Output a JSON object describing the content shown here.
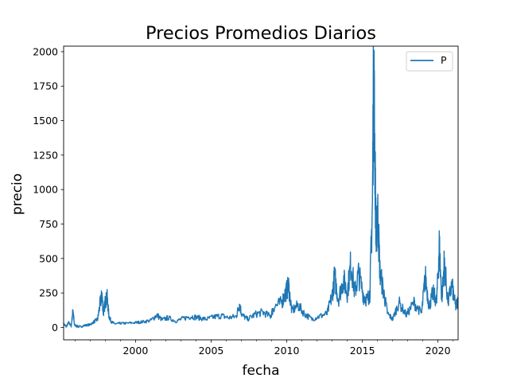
{
  "chart_data": {
    "type": "line",
    "title": "Precios Promedios Diarios",
    "xlabel": "fecha",
    "ylabel": "precio",
    "xlim": [
      "1995-04-01",
      "2021-05-01"
    ],
    "ylim": [
      -90,
      2040
    ],
    "x_ticks": [
      "2000",
      "2005",
      "2010",
      "2015",
      "2020"
    ],
    "y_ticks": [
      "0",
      "250",
      "500",
      "750",
      "1000",
      "1250",
      "1500",
      "1750",
      "2000"
    ],
    "grid": false,
    "legend": {
      "placement": "top-right",
      "entries": [
        "P"
      ]
    },
    "series": [
      {
        "name": "P",
        "color": "#1f77b4",
        "points": [
          [
            "1995-04-01",
            25
          ],
          [
            "1995-06-01",
            5
          ],
          [
            "1995-08-01",
            35
          ],
          [
            "1995-10-01",
            10
          ],
          [
            "1995-11-15",
            130
          ],
          [
            "1995-12-15",
            20
          ],
          [
            "1996-02-01",
            10
          ],
          [
            "1996-05-01",
            5
          ],
          [
            "1996-09-01",
            15
          ],
          [
            "1997-01-01",
            20
          ],
          [
            "1997-04-01",
            40
          ],
          [
            "1997-07-01",
            60
          ],
          [
            "1997-09-01",
            180
          ],
          [
            "1997-10-15",
            230
          ],
          [
            "1997-11-15",
            100
          ],
          [
            "1998-01-01",
            190
          ],
          [
            "1998-02-15",
            215
          ],
          [
            "1998-04-01",
            80
          ],
          [
            "1998-06-01",
            40
          ],
          [
            "1998-09-01",
            25
          ],
          [
            "1999-01-01",
            30
          ],
          [
            "1999-06-01",
            30
          ],
          [
            "2000-01-01",
            35
          ],
          [
            "2000-06-01",
            40
          ],
          [
            "2001-01-01",
            50
          ],
          [
            "2001-06-01",
            90
          ],
          [
            "2001-10-01",
            55
          ],
          [
            "2002-03-01",
            70
          ],
          [
            "2002-09-01",
            45
          ],
          [
            "2003-03-01",
            65
          ],
          [
            "2003-09-01",
            80
          ],
          [
            "2004-03-01",
            70
          ],
          [
            "2004-09-01",
            60
          ],
          [
            "2005-03-01",
            75
          ],
          [
            "2005-09-01",
            85
          ],
          [
            "2006-03-01",
            70
          ],
          [
            "2006-09-01",
            80
          ],
          [
            "2006-11-15",
            170
          ],
          [
            "2007-01-15",
            90
          ],
          [
            "2007-06-01",
            60
          ],
          [
            "2007-12-01",
            95
          ],
          [
            "2008-06-01",
            110
          ],
          [
            "2008-12-01",
            80
          ],
          [
            "2009-03-01",
            150
          ],
          [
            "2009-09-01",
            180
          ],
          [
            "2009-12-01",
            250
          ],
          [
            "2010-02-15",
            300
          ],
          [
            "2010-05-01",
            120
          ],
          [
            "2010-10-01",
            160
          ],
          [
            "2011-03-01",
            100
          ],
          [
            "2011-09-01",
            60
          ],
          [
            "2012-03-01",
            80
          ],
          [
            "2012-09-01",
            100
          ],
          [
            "2013-01-01",
            230
          ],
          [
            "2013-03-01",
            370
          ],
          [
            "2013-06-01",
            200
          ],
          [
            "2013-10-01",
            350
          ],
          [
            "2014-01-01",
            250
          ],
          [
            "2014-04-01",
            470
          ],
          [
            "2014-07-01",
            250
          ],
          [
            "2014-10-01",
            390
          ],
          [
            "2015-02-01",
            230
          ],
          [
            "2015-05-01",
            200
          ],
          [
            "2015-07-01",
            250
          ],
          [
            "2015-09-01",
            900
          ],
          [
            "2015-10-01",
            1940
          ],
          [
            "2015-11-01",
            1200
          ],
          [
            "2015-12-01",
            600
          ],
          [
            "2016-01-01",
            880
          ],
          [
            "2016-03-01",
            400
          ],
          [
            "2016-06-01",
            250
          ],
          [
            "2016-09-01",
            100
          ],
          [
            "2017-01-01",
            60
          ],
          [
            "2017-06-01",
            180
          ],
          [
            "2017-12-01",
            90
          ],
          [
            "2018-06-01",
            180
          ],
          [
            "2018-12-01",
            100
          ],
          [
            "2019-03-01",
            370
          ],
          [
            "2019-06-01",
            150
          ],
          [
            "2019-09-01",
            250
          ],
          [
            "2019-12-01",
            190
          ],
          [
            "2020-02-01",
            600
          ],
          [
            "2020-04-01",
            200
          ],
          [
            "2020-06-01",
            470
          ],
          [
            "2020-09-01",
            180
          ],
          [
            "2020-12-01",
            310
          ],
          [
            "2021-03-01",
            150
          ],
          [
            "2021-05-01",
            190
          ]
        ]
      }
    ]
  }
}
